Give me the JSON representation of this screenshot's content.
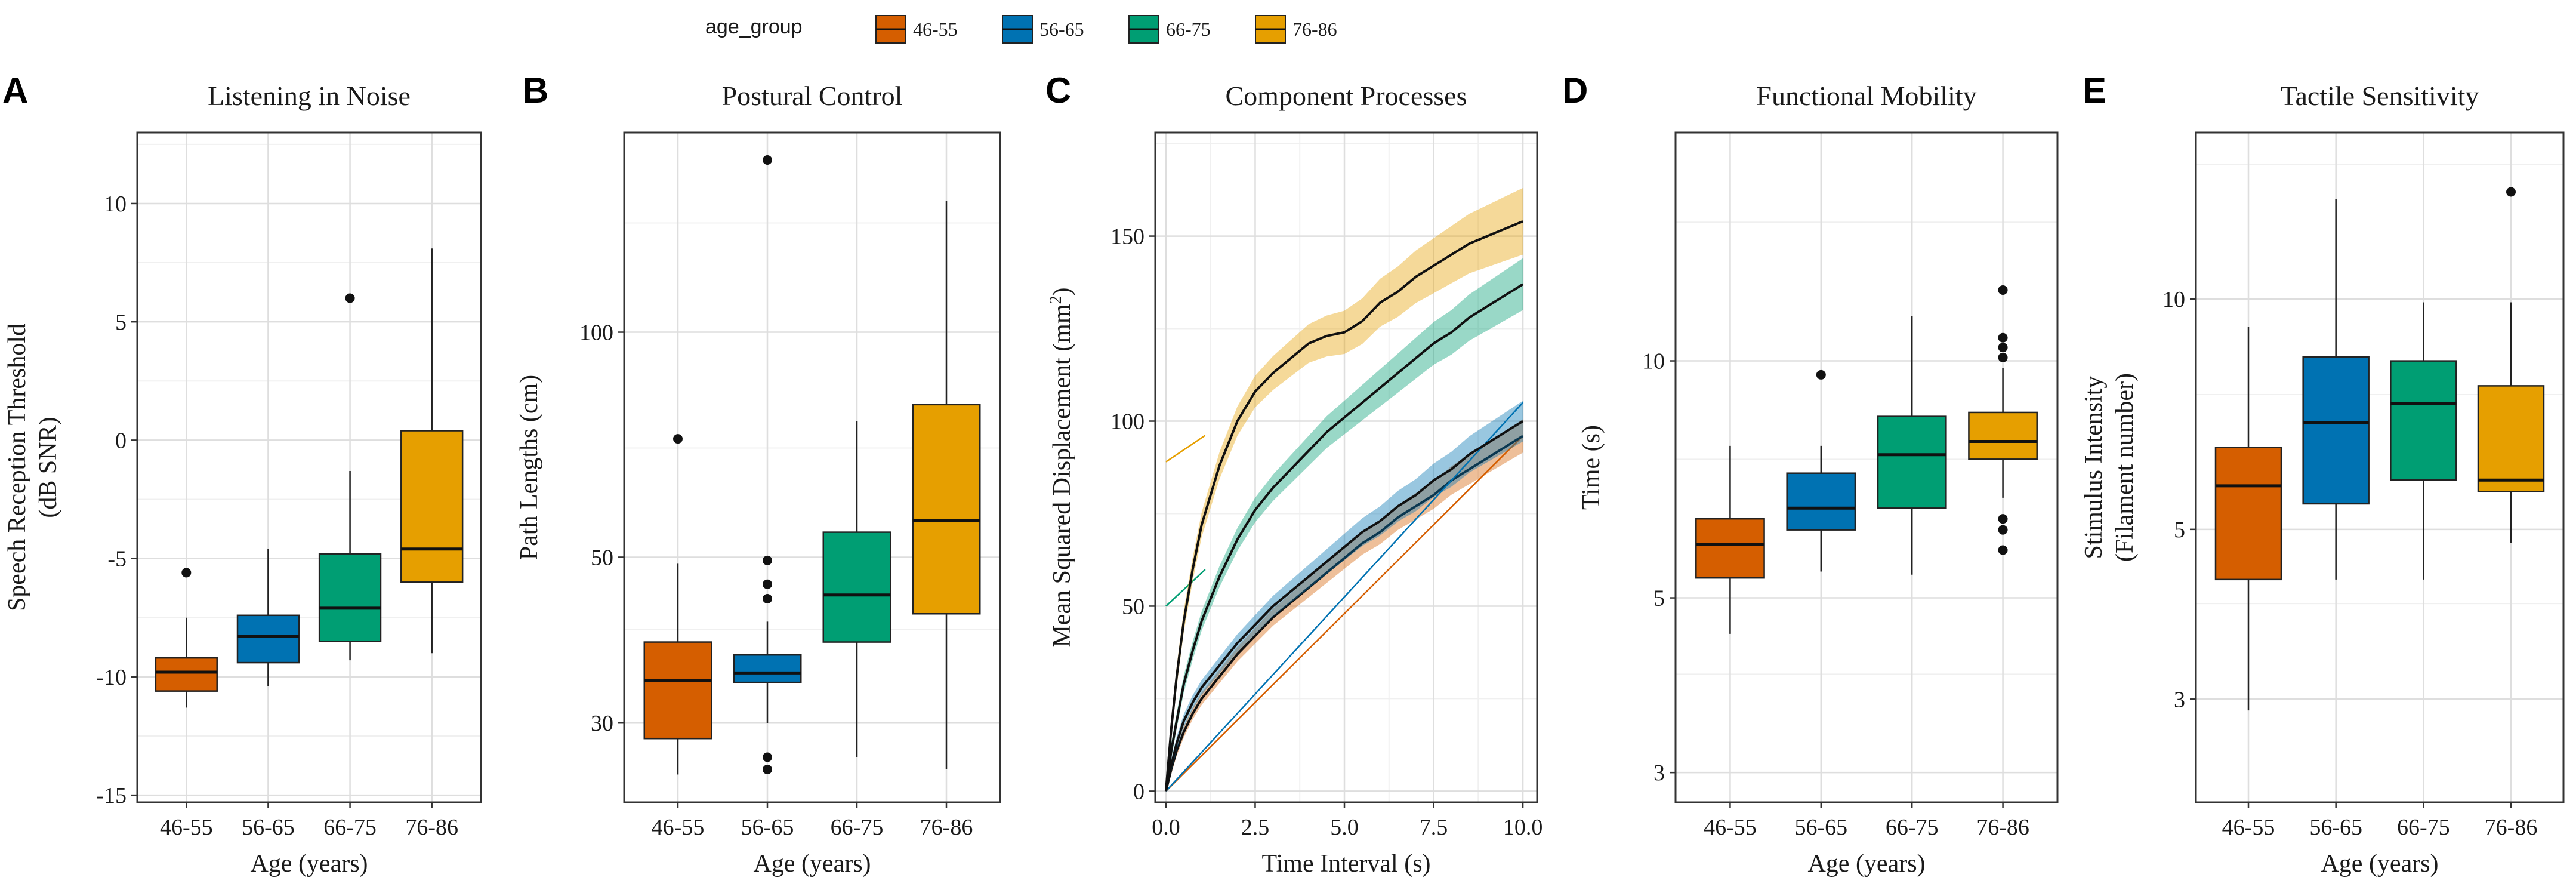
{
  "legend": {
    "title": "age_group",
    "groups": [
      {
        "label": "46-55",
        "color": "#D55E00"
      },
      {
        "label": "56-65",
        "color": "#0072B2"
      },
      {
        "label": "66-75",
        "color": "#009E73"
      },
      {
        "label": "76-86",
        "color": "#E69F00"
      }
    ]
  },
  "chart_data": [
    {
      "panel": "A",
      "type": "boxplot",
      "title": "Listening in Noise",
      "xlabel": "Age (years)",
      "ylabel": [
        "Speech Reception Threshold",
        "(dB SNR)"
      ],
      "ylim": [
        -15.3,
        13
      ],
      "yticks": [
        -15,
        -10,
        -5,
        0,
        5,
        10
      ],
      "ytick_labels": [
        "-15",
        "-10",
        "-5",
        "0",
        "5",
        "10"
      ],
      "yminor": [
        -12.5,
        -7.5,
        -2.5,
        2.5,
        7.5,
        12.5
      ],
      "categories": [
        "46-55",
        "56-65",
        "66-75",
        "76-86"
      ],
      "boxes": [
        {
          "lw": -11.3,
          "q1": -10.6,
          "med": -9.8,
          "q3": -9.2,
          "uw": -7.5,
          "out": [
            -5.6
          ]
        },
        {
          "lw": -10.4,
          "q1": -9.4,
          "med": -8.3,
          "q3": -7.4,
          "uw": -4.6,
          "out": []
        },
        {
          "lw": -9.3,
          "q1": -8.5,
          "med": -7.1,
          "q3": -4.8,
          "uw": -1.3,
          "out": [
            6.0
          ]
        },
        {
          "lw": -9.0,
          "q1": -6.0,
          "med": -4.6,
          "q3": 0.4,
          "uw": 8.1,
          "out": []
        }
      ]
    },
    {
      "panel": "B",
      "type": "boxplot",
      "title": "Postural Control",
      "xlabel": "Age (years)",
      "ylabel": [
        "Path Lengths (cm)"
      ],
      "yscale": "log",
      "ylim": [
        23.5,
        185
      ],
      "yticks": [
        30,
        50,
        100
      ],
      "ytick_labels": [
        "30",
        "50",
        "100"
      ],
      "yminor": [
        40,
        70,
        140
      ],
      "categories": [
        "46-55",
        "56-65",
        "66-75",
        "76-86"
      ],
      "boxes": [
        {
          "lw": 25.6,
          "q1": 28.6,
          "med": 34.2,
          "q3": 38.5,
          "uw": 49.0,
          "out": [
            72.0
          ]
        },
        {
          "lw": 30.0,
          "q1": 34.0,
          "med": 35.0,
          "q3": 37.0,
          "uw": 41.0,
          "out": [
            26.0,
            27.0,
            44.0,
            46.0,
            49.5,
            170.0
          ]
        },
        {
          "lw": 27.0,
          "q1": 38.5,
          "med": 44.5,
          "q3": 54.0,
          "uw": 76.0,
          "out": []
        },
        {
          "lw": 26.0,
          "q1": 42.0,
          "med": 56.0,
          "q3": 80.0,
          "uw": 150.0,
          "out": []
        }
      ]
    },
    {
      "panel": "C",
      "type": "line",
      "title": "Component Processes",
      "xlabel": "Time Interval (s)",
      "ylabel": [
        "Mean Squared Displacement (mm",
        "2",
        ")"
      ],
      "xlim": [
        -0.3,
        10.4
      ],
      "ylim": [
        -3,
        178
      ],
      "xticks": [
        0,
        2.5,
        5,
        7.5,
        10
      ],
      "xtick_labels": [
        "0.0",
        "2.5",
        "5.0",
        "7.5",
        "10.0"
      ],
      "xminor": [
        1.25,
        3.75,
        6.25,
        8.75
      ],
      "yticks": [
        0,
        50,
        100,
        150
      ],
      "ytick_labels": [
        "0",
        "50",
        "100",
        "150"
      ],
      "yminor": [
        25,
        75,
        125,
        175
      ],
      "series": [
        {
          "name": "46-55",
          "x": [
            0,
            0.15,
            0.3,
            0.5,
            0.75,
            1,
            1.5,
            2,
            2.5,
            3,
            3.5,
            4,
            4.5,
            5,
            5.5,
            6,
            6.5,
            7,
            7.5,
            8,
            8.5,
            9,
            9.5,
            10
          ],
          "y": [
            0,
            6,
            11,
            16,
            21,
            25,
            31,
            37,
            42,
            47,
            51,
            55,
            59,
            63,
            67,
            70,
            74,
            77,
            80,
            84,
            87,
            90,
            93,
            96
          ],
          "band": 4.5,
          "linear_fit": [
            0,
            9.6
          ]
        },
        {
          "name": "56-65",
          "x": [
            0,
            0.15,
            0.3,
            0.5,
            0.75,
            1,
            1.5,
            2,
            2.5,
            3,
            3.5,
            4,
            4.5,
            5,
            5.5,
            6,
            6.5,
            7,
            7.5,
            8,
            8.5,
            9,
            9.5,
            10
          ],
          "y": [
            0,
            7,
            13,
            19,
            24,
            28,
            34,
            40,
            45,
            50,
            54,
            58,
            62,
            66,
            70,
            73,
            77,
            80,
            84,
            87,
            91,
            94,
            97,
            100
          ],
          "band": 5.5,
          "linear_fit": [
            0,
            10.5
          ]
        },
        {
          "name": "66-75",
          "x": [
            0,
            0.15,
            0.3,
            0.5,
            0.75,
            1,
            1.5,
            2,
            2.5,
            3,
            3.5,
            4,
            4.5,
            5,
            5.5,
            6,
            6.5,
            7,
            7.5,
            8,
            8.5,
            9,
            9.5,
            10
          ],
          "y": [
            0,
            11,
            19,
            29,
            38,
            46,
            58,
            68,
            76,
            82,
            87,
            92,
            97,
            101,
            105,
            109,
            113,
            117,
            121,
            124,
            128,
            131,
            134,
            137
          ],
          "band": 7,
          "linear_fit": [
            50,
            9
          ]
        },
        {
          "name": "76-86",
          "x": [
            0,
            0.15,
            0.3,
            0.5,
            0.75,
            1,
            1.5,
            2,
            2.5,
            3,
            3.5,
            4,
            4.5,
            5,
            5.5,
            6,
            6.5,
            7,
            7.5,
            8,
            8.5,
            9,
            9.5,
            10
          ],
          "y": [
            0,
            17,
            31,
            46,
            60,
            72,
            88,
            100,
            108,
            113,
            117,
            121,
            123,
            124,
            127,
            132,
            135,
            139,
            142,
            145,
            148,
            150,
            152,
            154
          ],
          "band": 9,
          "linear_fit": [
            89,
            6.5
          ]
        }
      ]
    },
    {
      "panel": "D",
      "type": "boxplot",
      "title": "Functional Mobility",
      "xlabel": "Age (years)",
      "ylabel": [
        "Time (s)"
      ],
      "yscale": "log",
      "ylim": [
        2.75,
        19.5
      ],
      "yticks": [
        3,
        5,
        10
      ],
      "ytick_labels": [
        "3",
        "5",
        "10"
      ],
      "yminor": [
        4,
        7.5,
        15
      ],
      "categories": [
        "46-55",
        "56-65",
        "66-75",
        "76-86"
      ],
      "boxes": [
        {
          "lw": 4.5,
          "q1": 5.3,
          "med": 5.85,
          "q3": 6.3,
          "uw": 7.8,
          "out": []
        },
        {
          "lw": 5.4,
          "q1": 6.1,
          "med": 6.5,
          "q3": 7.2,
          "uw": 7.8,
          "out": [
            9.6
          ]
        },
        {
          "lw": 5.35,
          "q1": 6.5,
          "med": 7.6,
          "q3": 8.5,
          "uw": 11.4,
          "out": []
        },
        {
          "lw": 6.7,
          "q1": 7.5,
          "med": 7.9,
          "q3": 8.6,
          "uw": 9.8,
          "out": [
            5.75,
            6.1,
            6.3,
            10.1,
            10.4,
            10.7,
            12.3
          ]
        }
      ]
    },
    {
      "panel": "E",
      "type": "boxplot",
      "title": "Tactile Sensitivity",
      "xlabel": "Age (years)",
      "ylabel": [
        "Stimulus Intensity",
        "(Filament number)"
      ],
      "yscale": "log",
      "ylim": [
        2.2,
        16.5
      ],
      "yticks": [
        3,
        5,
        10
      ],
      "ytick_labels": [
        "3",
        "5",
        "10"
      ],
      "yminor": [
        4,
        7.5,
        15
      ],
      "categories": [
        "46-55",
        "56-65",
        "66-75",
        "76-86"
      ],
      "boxes": [
        {
          "lw": 2.9,
          "q1": 4.3,
          "med": 5.7,
          "q3": 6.4,
          "uw": 9.2,
          "out": []
        },
        {
          "lw": 4.3,
          "q1": 5.4,
          "med": 6.9,
          "q3": 8.4,
          "uw": 13.5,
          "out": []
        },
        {
          "lw": 4.3,
          "q1": 5.8,
          "med": 7.3,
          "q3": 8.3,
          "uw": 9.9,
          "out": []
        },
        {
          "lw": 4.8,
          "q1": 5.6,
          "med": 5.8,
          "q3": 7.7,
          "uw": 9.9,
          "out": [
            13.8
          ]
        }
      ]
    }
  ]
}
